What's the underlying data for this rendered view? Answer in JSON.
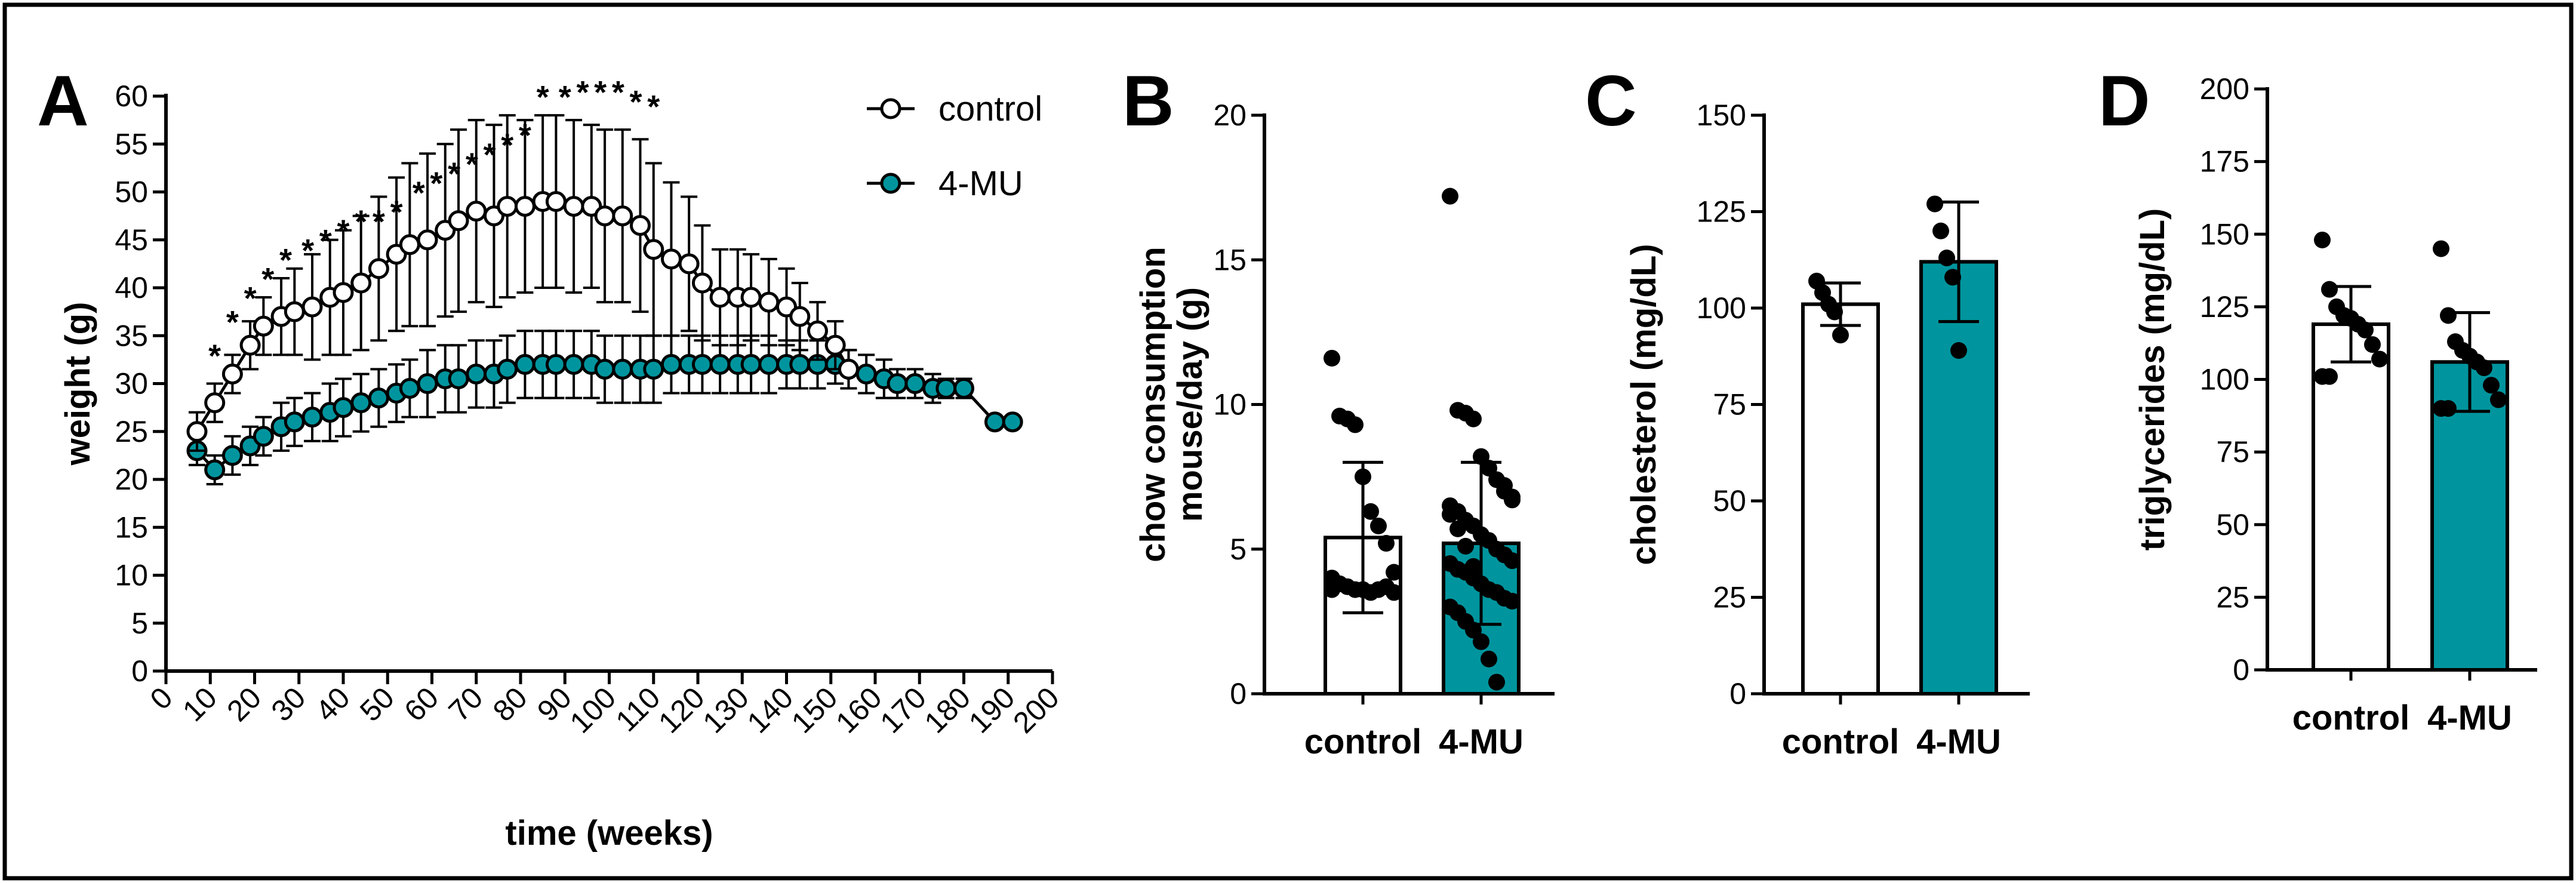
{
  "colors": {
    "teal": "#00959e",
    "control_fill": "#ffffff",
    "ink": "#000000"
  },
  "chart_data": [
    {
      "panel": "A",
      "type": "line",
      "xlabel": "time (weeks)",
      "ylabel": "weight (g)",
      "xlim": [
        0,
        200
      ],
      "ylim": [
        0,
        60
      ],
      "xticks": [
        0,
        10,
        20,
        30,
        40,
        50,
        60,
        70,
        80,
        90,
        100,
        110,
        120,
        130,
        140,
        150,
        160,
        170,
        180,
        190,
        200
      ],
      "yticks": [
        0,
        5,
        10,
        15,
        20,
        25,
        30,
        35,
        40,
        45,
        50,
        55,
        60
      ],
      "legend": [
        "control",
        "4-MU"
      ],
      "legend_position": "top-right",
      "series": [
        {
          "name": "control",
          "x": [
            7,
            11,
            15,
            19,
            22,
            26,
            29,
            33,
            37,
            40,
            44,
            48,
            52,
            55,
            59,
            63,
            66,
            70,
            74,
            77,
            81,
            85,
            88,
            92,
            96,
            99,
            103,
            107,
            110,
            114,
            118,
            121,
            125,
            129,
            132,
            136,
            140,
            143,
            147,
            151,
            154
          ],
          "y": [
            25,
            28,
            31,
            34,
            36,
            37,
            37.5,
            38,
            39,
            39.5,
            40.5,
            42,
            43.5,
            44.5,
            45,
            46,
            47,
            48,
            47.5,
            48.5,
            48.5,
            49,
            49,
            48.5,
            48.5,
            47.5,
            47.5,
            46.5,
            44,
            43,
            42.5,
            40.5,
            39,
            39,
            39,
            38.5,
            38,
            37,
            35.5,
            34,
            31.5
          ],
          "err": [
            2,
            2,
            2,
            2.5,
            3,
            4,
            4.5,
            5.5,
            6,
            6.5,
            7,
            7.5,
            8,
            8.5,
            9,
            9,
            9.5,
            9.5,
            9.5,
            9.5,
            9,
            9,
            9,
            9,
            8.5,
            9,
            9,
            9,
            9,
            8,
            7,
            6,
            5,
            5,
            4.5,
            4.5,
            4,
            3.5,
            3,
            2.5,
            2
          ]
        },
        {
          "name": "4-MU",
          "x": [
            7,
            11,
            15,
            19,
            22,
            26,
            29,
            33,
            37,
            40,
            44,
            48,
            52,
            55,
            59,
            63,
            66,
            70,
            74,
            77,
            81,
            85,
            88,
            92,
            96,
            99,
            103,
            107,
            110,
            114,
            118,
            121,
            125,
            129,
            132,
            136,
            140,
            143,
            147,
            151,
            154,
            158,
            162,
            165,
            169,
            173,
            176,
            180,
            187,
            191
          ],
          "y": [
            23,
            21,
            22.5,
            23.5,
            24.5,
            25.5,
            26,
            26.5,
            27,
            27.5,
            28,
            28.5,
            29,
            29.5,
            30,
            30.5,
            30.5,
            31,
            31,
            31.5,
            32,
            32,
            32,
            32,
            32,
            31.5,
            31.5,
            31.5,
            31.5,
            32,
            32,
            32,
            32,
            32,
            32,
            32,
            32,
            32,
            32,
            32,
            31.5,
            31,
            30.5,
            30,
            30,
            29.5,
            29.5,
            29.5,
            26,
            26
          ],
          "err": [
            1.5,
            1.5,
            2,
            2,
            2,
            2.5,
            2.5,
            2.5,
            3,
            3,
            3,
            3,
            3,
            3,
            3.5,
            3.5,
            3.5,
            3.5,
            3.5,
            3.5,
            3.5,
            3.5,
            3.5,
            3.5,
            3.5,
            3.5,
            3.5,
            3.5,
            3.5,
            3,
            3,
            3,
            3,
            3,
            3,
            3,
            2.5,
            2.5,
            2.5,
            2,
            2,
            2,
            2,
            1.5,
            1.5,
            1.5,
            1,
            1,
            0.5,
            0.5
          ]
        }
      ],
      "significance": {
        "marker": "*",
        "x": [
          11,
          15,
          19,
          23,
          27,
          32,
          36,
          40,
          44,
          48,
          52,
          57,
          61,
          65,
          69,
          73,
          77,
          81,
          85,
          90,
          94,
          98,
          102,
          106,
          110
        ],
        "y_label_value": [
          33,
          36.5,
          39,
          41,
          43,
          44,
          45,
          46,
          47,
          47,
          48,
          50,
          51,
          52,
          53,
          54,
          55,
          56,
          60,
          60,
          60.5,
          60.5,
          60.5,
          59.5,
          59
        ]
      }
    },
    {
      "panel": "B",
      "type": "bar",
      "ylabel": "chow consumption\nmouse/day (g)",
      "ylabel_lines": [
        "chow consumption",
        "mouse/day (g)"
      ],
      "categories": [
        "control",
        "4-MU"
      ],
      "values": [
        5.4,
        5.2
      ],
      "sd": [
        2.6,
        2.8
      ],
      "ylim": [
        0,
        20
      ],
      "yticks": [
        0,
        5,
        10,
        15,
        20
      ],
      "points": [
        [
          11.6,
          9.6,
          9.5,
          9.3,
          7.5,
          6.3,
          5.8,
          5.2,
          4.2,
          4.0,
          3.8,
          3.7,
          3.6,
          3.6,
          3.5,
          3.6,
          3.7,
          3.5,
          3.6,
          3.8
        ],
        [
          17.2,
          9.8,
          9.7,
          9.5,
          8.2,
          7.8,
          7.4,
          7.0,
          6.8,
          6.5,
          6.3,
          6.0,
          5.8,
          5.5,
          5.3,
          5.0,
          4.8,
          4.6,
          4.5,
          4.3,
          4.2,
          4.0,
          3.8,
          3.6,
          3.5,
          3.3,
          3.2,
          3.0,
          2.8,
          2.5,
          2.2,
          1.8,
          1.2,
          0.4,
          7.2,
          6.7,
          6.2,
          5.7,
          5.1,
          4.4
        ]
      ]
    },
    {
      "panel": "C",
      "type": "bar",
      "ylabel": "cholesterol (mg/dL)",
      "categories": [
        "control",
        "4-MU"
      ],
      "values": [
        101,
        112
      ],
      "sd": [
        5.5,
        15.5
      ],
      "ylim": [
        0,
        150
      ],
      "yticks": [
        0,
        25,
        50,
        75,
        100,
        125,
        150
      ],
      "points": [
        [
          107,
          104,
          101,
          99,
          93
        ],
        [
          127,
          120,
          113,
          108,
          89
        ]
      ]
    },
    {
      "panel": "D",
      "type": "bar",
      "ylabel": "triglycerides (mg/dL)",
      "categories": [
        "control",
        "4-MU"
      ],
      "values": [
        119,
        106
      ],
      "sd": [
        13,
        17
      ],
      "ylim": [
        0,
        200
      ],
      "yticks": [
        0,
        25,
        50,
        75,
        100,
        125,
        150,
        175,
        200
      ],
      "points": [
        [
          148,
          131,
          125,
          122,
          121,
          119,
          117,
          112,
          107,
          101,
          101
        ],
        [
          145,
          122,
          113,
          110,
          108,
          106,
          104,
          98,
          93,
          90,
          90
        ]
      ]
    }
  ]
}
